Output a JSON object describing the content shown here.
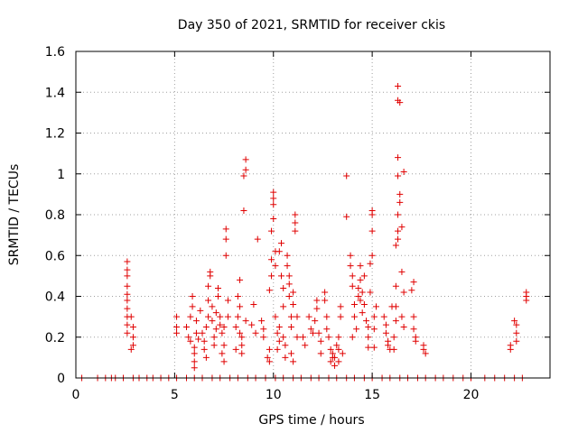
{
  "chart_data": {
    "type": "scatter",
    "title": "Day 350 of 2021, SRMTID for receiver ckis",
    "xlabel": "GPS time / hours",
    "ylabel": "SRMTID / TECUs",
    "xlim": [
      0,
      24
    ],
    "ylim": [
      0,
      1.6
    ],
    "xticks": [
      0,
      5,
      10,
      15,
      20
    ],
    "yticks": [
      0,
      0.2,
      0.4,
      0.6,
      0.8,
      1,
      1.2,
      1.4,
      1.6
    ],
    "xtick_labels": [
      "0",
      "5",
      "10",
      "15",
      "20"
    ],
    "ytick_labels": [
      "0",
      "0.2",
      "0.4",
      "0.6",
      "0.8",
      "1",
      "1.2",
      "1.4",
      "1.6"
    ],
    "grid": true,
    "marker": "+",
    "color": "#e00000",
    "series": [
      {
        "name": "SRMTID",
        "points": [
          [
            0.3,
            0
          ],
          [
            1.1,
            0
          ],
          [
            1.5,
            0
          ],
          [
            1.8,
            0
          ],
          [
            2.0,
            0
          ],
          [
            2.4,
            0
          ],
          [
            2.9,
            0
          ],
          [
            3.2,
            0
          ],
          [
            3.6,
            0
          ],
          [
            3.9,
            0
          ],
          [
            4.3,
            0
          ],
          [
            4.7,
            0
          ],
          [
            5.1,
            0
          ],
          [
            5.6,
            0
          ],
          [
            6.0,
            0
          ],
          [
            6.4,
            0
          ],
          [
            6.9,
            0
          ],
          [
            7.3,
            0
          ],
          [
            7.8,
            0
          ],
          [
            8.2,
            0
          ],
          [
            8.7,
            0
          ],
          [
            9.1,
            0
          ],
          [
            9.6,
            0
          ],
          [
            10.1,
            0
          ],
          [
            10.5,
            0
          ],
          [
            11.0,
            0
          ],
          [
            11.4,
            0
          ],
          [
            11.9,
            0
          ],
          [
            12.3,
            0
          ],
          [
            12.8,
            0
          ],
          [
            13.2,
            0
          ],
          [
            13.7,
            0
          ],
          [
            14.1,
            0
          ],
          [
            14.6,
            0
          ],
          [
            15.0,
            0
          ],
          [
            15.5,
            0
          ],
          [
            15.9,
            0
          ],
          [
            16.4,
            0
          ],
          [
            16.8,
            0
          ],
          [
            17.3,
            0
          ],
          [
            17.7,
            0
          ],
          [
            18.2,
            0
          ],
          [
            18.6,
            0
          ],
          [
            19.1,
            0
          ],
          [
            19.6,
            0
          ],
          [
            20.0,
            0
          ],
          [
            20.7,
            0
          ],
          [
            21.2,
            0
          ],
          [
            21.7,
            0
          ],
          [
            22.2,
            0
          ],
          [
            22.6,
            0
          ],
          [
            2.6,
            0.57
          ],
          [
            2.6,
            0.53
          ],
          [
            2.6,
            0.5
          ],
          [
            2.6,
            0.45
          ],
          [
            2.6,
            0.41
          ],
          [
            2.6,
            0.38
          ],
          [
            2.6,
            0.34
          ],
          [
            2.6,
            0.3
          ],
          [
            2.6,
            0.26
          ],
          [
            2.6,
            0.22
          ],
          [
            2.8,
            0.3
          ],
          [
            2.9,
            0.25
          ],
          [
            2.9,
            0.2
          ],
          [
            2.9,
            0.16
          ],
          [
            2.8,
            0.14
          ],
          [
            5.1,
            0.3
          ],
          [
            5.1,
            0.25
          ],
          [
            5.1,
            0.22
          ],
          [
            5.6,
            0.25
          ],
          [
            5.7,
            0.2
          ],
          [
            5.8,
            0.18
          ],
          [
            5.8,
            0.3
          ],
          [
            5.9,
            0.35
          ],
          [
            5.9,
            0.4
          ],
          [
            6.0,
            0.15
          ],
          [
            6.0,
            0.12
          ],
          [
            6.0,
            0.08
          ],
          [
            6.0,
            0.05
          ],
          [
            6.1,
            0.22
          ],
          [
            6.1,
            0.28
          ],
          [
            6.2,
            0.19
          ],
          [
            6.3,
            0.33
          ],
          [
            6.4,
            0.22
          ],
          [
            6.5,
            0.18
          ],
          [
            6.5,
            0.14
          ],
          [
            6.6,
            0.1
          ],
          [
            6.6,
            0.25
          ],
          [
            6.7,
            0.3
          ],
          [
            6.7,
            0.38
          ],
          [
            6.7,
            0.45
          ],
          [
            6.8,
            0.5
          ],
          [
            6.8,
            0.52
          ],
          [
            6.9,
            0.35
          ],
          [
            6.9,
            0.28
          ],
          [
            7.0,
            0.2
          ],
          [
            7.0,
            0.16
          ],
          [
            7.1,
            0.24
          ],
          [
            7.1,
            0.32
          ],
          [
            7.2,
            0.4
          ],
          [
            7.2,
            0.44
          ],
          [
            7.3,
            0.3
          ],
          [
            7.3,
            0.26
          ],
          [
            7.4,
            0.22
          ],
          [
            7.4,
            0.12
          ],
          [
            7.5,
            0.08
          ],
          [
            7.5,
            0.16
          ],
          [
            7.5,
            0.25
          ],
          [
            7.6,
            0.6
          ],
          [
            7.6,
            0.68
          ],
          [
            7.6,
            0.73
          ],
          [
            7.7,
            0.38
          ],
          [
            7.7,
            0.3
          ],
          [
            8.1,
            0.14
          ],
          [
            8.1,
            0.25
          ],
          [
            8.2,
            0.3
          ],
          [
            8.2,
            0.4
          ],
          [
            8.3,
            0.48
          ],
          [
            8.3,
            0.35
          ],
          [
            8.3,
            0.22
          ],
          [
            8.4,
            0.16
          ],
          [
            8.4,
            0.12
          ],
          [
            8.4,
            0.2
          ],
          [
            8.5,
            0.82
          ],
          [
            8.5,
            0.99
          ],
          [
            8.6,
            1.02
          ],
          [
            8.6,
            1.07
          ],
          [
            8.6,
            0.28
          ],
          [
            8.9,
            0.26
          ],
          [
            9.0,
            0.36
          ],
          [
            9.1,
            0.22
          ],
          [
            9.2,
            0.68
          ],
          [
            9.4,
            0.28
          ],
          [
            9.5,
            0.24
          ],
          [
            9.5,
            0.2
          ],
          [
            9.7,
            0.1
          ],
          [
            9.8,
            0.14
          ],
          [
            9.8,
            0.08
          ],
          [
            9.8,
            0.43
          ],
          [
            9.9,
            0.5
          ],
          [
            9.9,
            0.58
          ],
          [
            9.9,
            0.72
          ],
          [
            10.0,
            0.78
          ],
          [
            10.0,
            0.88
          ],
          [
            10.0,
            0.91
          ],
          [
            10.0,
            0.85
          ],
          [
            10.1,
            0.62
          ],
          [
            10.1,
            0.55
          ],
          [
            10.1,
            0.3
          ],
          [
            10.2,
            0.22
          ],
          [
            10.2,
            0.14
          ],
          [
            10.3,
            0.18
          ],
          [
            10.3,
            0.25
          ],
          [
            10.3,
            0.62
          ],
          [
            10.4,
            0.66
          ],
          [
            10.4,
            0.5
          ],
          [
            10.5,
            0.44
          ],
          [
            10.5,
            0.35
          ],
          [
            10.5,
            0.2
          ],
          [
            10.6,
            0.16
          ],
          [
            10.6,
            0.1
          ],
          [
            10.7,
            0.6
          ],
          [
            10.7,
            0.55
          ],
          [
            10.8,
            0.5
          ],
          [
            10.8,
            0.46
          ],
          [
            10.8,
            0.4
          ],
          [
            10.9,
            0.3
          ],
          [
            10.9,
            0.25
          ],
          [
            10.9,
            0.12
          ],
          [
            11.0,
            0.08
          ],
          [
            11.0,
            0.36
          ],
          [
            11.0,
            0.42
          ],
          [
            11.1,
            0.8
          ],
          [
            11.1,
            0.76
          ],
          [
            11.1,
            0.72
          ],
          [
            11.2,
            0.3
          ],
          [
            11.2,
            0.2
          ],
          [
            11.5,
            0.2
          ],
          [
            11.6,
            0.16
          ],
          [
            11.8,
            0.3
          ],
          [
            11.9,
            0.24
          ],
          [
            12.0,
            0.22
          ],
          [
            12.1,
            0.28
          ],
          [
            12.2,
            0.34
          ],
          [
            12.2,
            0.38
          ],
          [
            12.3,
            0.22
          ],
          [
            12.4,
            0.18
          ],
          [
            12.4,
            0.12
          ],
          [
            12.6,
            0.42
          ],
          [
            12.6,
            0.38
          ],
          [
            12.7,
            0.3
          ],
          [
            12.7,
            0.24
          ],
          [
            12.8,
            0.2
          ],
          [
            12.9,
            0.14
          ],
          [
            12.9,
            0.08
          ],
          [
            13.0,
            0.1
          ],
          [
            13.0,
            0.12
          ],
          [
            13.1,
            0.06
          ],
          [
            13.1,
            0.1
          ],
          [
            13.2,
            0.16
          ],
          [
            13.3,
            0.2
          ],
          [
            13.3,
            0.14
          ],
          [
            13.3,
            0.08
          ],
          [
            13.4,
            0.3
          ],
          [
            13.4,
            0.35
          ],
          [
            13.5,
            0.12
          ],
          [
            13.7,
            0.79
          ],
          [
            13.7,
            0.99
          ],
          [
            13.9,
            0.6
          ],
          [
            13.9,
            0.55
          ],
          [
            14.0,
            0.5
          ],
          [
            14.0,
            0.45
          ],
          [
            14.0,
            0.2
          ],
          [
            14.1,
            0.36
          ],
          [
            14.1,
            0.3
          ],
          [
            14.2,
            0.24
          ],
          [
            14.3,
            0.4
          ],
          [
            14.3,
            0.44
          ],
          [
            14.4,
            0.48
          ],
          [
            14.4,
            0.55
          ],
          [
            14.4,
            0.38
          ],
          [
            14.5,
            0.32
          ],
          [
            14.5,
            0.42
          ],
          [
            14.6,
            0.5
          ],
          [
            14.6,
            0.36
          ],
          [
            14.7,
            0.28
          ],
          [
            14.8,
            0.2
          ],
          [
            14.8,
            0.25
          ],
          [
            14.8,
            0.15
          ],
          [
            14.9,
            0.42
          ],
          [
            14.9,
            0.56
          ],
          [
            15.0,
            0.6
          ],
          [
            15.0,
            0.72
          ],
          [
            15.0,
            0.8
          ],
          [
            15.0,
            0.82
          ],
          [
            15.1,
            0.3
          ],
          [
            15.1,
            0.24
          ],
          [
            15.1,
            0.15
          ],
          [
            15.2,
            0.35
          ],
          [
            15.6,
            0.3
          ],
          [
            15.7,
            0.26
          ],
          [
            15.7,
            0.22
          ],
          [
            15.8,
            0.18
          ],
          [
            15.8,
            0.16
          ],
          [
            15.9,
            0.14
          ],
          [
            16.0,
            0.35
          ],
          [
            16.1,
            0.2
          ],
          [
            16.1,
            0.14
          ],
          [
            16.2,
            0.28
          ],
          [
            16.2,
            0.35
          ],
          [
            16.2,
            0.45
          ],
          [
            16.2,
            0.65
          ],
          [
            16.3,
            0.68
          ],
          [
            16.3,
            0.72
          ],
          [
            16.3,
            0.8
          ],
          [
            16.3,
            0.99
          ],
          [
            16.3,
            1.08
          ],
          [
            16.3,
            1.36
          ],
          [
            16.3,
            1.43
          ],
          [
            16.4,
            1.35
          ],
          [
            16.4,
            0.9
          ],
          [
            16.4,
            0.86
          ],
          [
            16.5,
            0.74
          ],
          [
            16.5,
            0.52
          ],
          [
            16.5,
            0.3
          ],
          [
            16.6,
            0.25
          ],
          [
            16.6,
            0.42
          ],
          [
            16.6,
            1.01
          ],
          [
            17.0,
            0.43
          ],
          [
            17.1,
            0.47
          ],
          [
            17.1,
            0.3
          ],
          [
            17.1,
            0.24
          ],
          [
            17.2,
            0.2
          ],
          [
            17.2,
            0.18
          ],
          [
            17.6,
            0.16
          ],
          [
            17.6,
            0.14
          ],
          [
            17.7,
            0.12
          ],
          [
            22.0,
            0.16
          ],
          [
            22.0,
            0.14
          ],
          [
            22.2,
            0.28
          ],
          [
            22.3,
            0.26
          ],
          [
            22.3,
            0.22
          ],
          [
            22.3,
            0.18
          ],
          [
            22.8,
            0.42
          ],
          [
            22.8,
            0.38
          ],
          [
            22.8,
            0.4
          ]
        ]
      }
    ]
  }
}
